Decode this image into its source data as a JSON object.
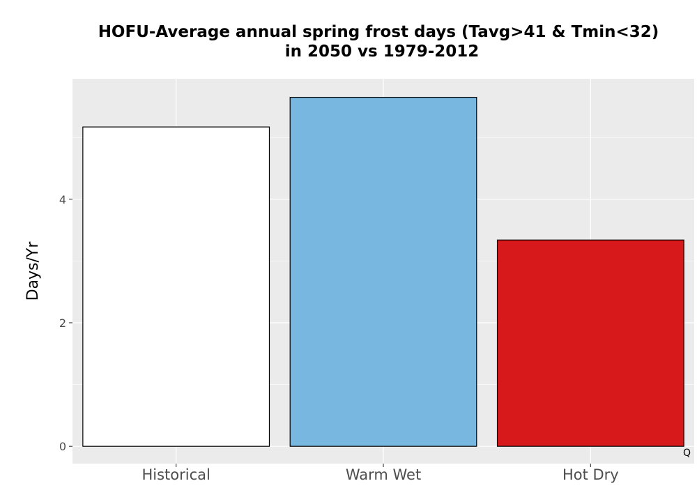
{
  "chart_data": {
    "type": "bar",
    "title_lines": [
      "HOFU-Average annual spring frost days (Tavg>41 & Tmin<32)",
      "in 2050 vs 1979-2012"
    ],
    "xlabel": "",
    "ylabel": "Days/Yr",
    "categories": [
      "Historical",
      "Warm Wet",
      "Hot Dry"
    ],
    "values": [
      5.17,
      5.65,
      3.34
    ],
    "colors": [
      "#ffffff",
      "#78b7e0",
      "#d7191c"
    ],
    "bar_outline": "#000000",
    "panel_background": "#ebebeb",
    "grid": true,
    "grid_color": "#ffffff",
    "yticks": [
      0,
      2,
      4
    ],
    "ylim": [
      -0.28,
      5.95
    ],
    "legend": "none",
    "corner_text": "Q"
  }
}
